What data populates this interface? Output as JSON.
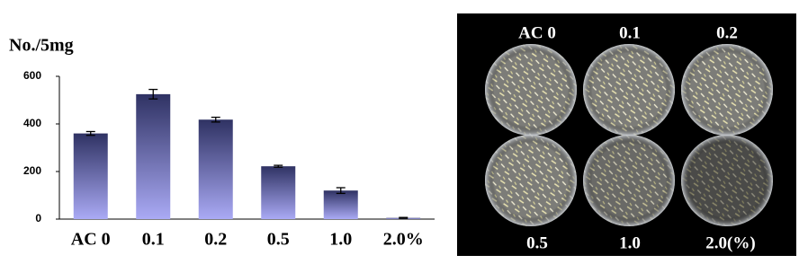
{
  "chart_data": {
    "type": "bar",
    "ylabel": "No./5mg",
    "categories": [
      "AC 0",
      "0.1",
      "0.2",
      "0.5",
      "1.0",
      "2.0%"
    ],
    "values": [
      360,
      525,
      418,
      222,
      120,
      5
    ],
    "errors": [
      8,
      20,
      10,
      4,
      12,
      2
    ],
    "gradient": [
      "#2f3263",
      "#aaaaf5"
    ],
    "ylim": [
      0,
      600
    ],
    "yticks": [
      0,
      200,
      400,
      600
    ],
    "grid": false
  },
  "photo": {
    "labels": [
      "AC 0",
      "0.1",
      "0.2",
      "0.5",
      "1.0",
      "2.0(%)"
    ]
  }
}
